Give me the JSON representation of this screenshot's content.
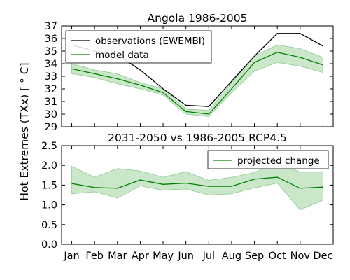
{
  "ylabel": "Hot Extremes (TXx) [$^\\circ C$]",
  "ylabel_display": "Hot Extremes (TXx) [ ° C]",
  "chart_data": [
    {
      "type": "line",
      "title": "Angola  1986-2005",
      "ylim": [
        29,
        37
      ],
      "yticks": [
        29,
        30,
        31,
        32,
        33,
        34,
        35,
        36,
        37
      ],
      "legend_position": "top-left",
      "categories": [
        "Jan",
        "Feb",
        "Mar",
        "Apr",
        "May",
        "Jun",
        "Jul",
        "Aug",
        "Sep",
        "Oct",
        "Nov",
        "Dec"
      ],
      "series": [
        {
          "name": "observations (EWEMBI)",
          "color": "#000000",
          "values": [
            35.5,
            35.0,
            34.7,
            33.5,
            32.0,
            30.7,
            30.6,
            32.6,
            34.6,
            36.4,
            36.4,
            35.4
          ]
        },
        {
          "name": "model data",
          "color": "#008000",
          "band_color": "#9fd39f",
          "values": [
            33.6,
            33.2,
            32.8,
            32.3,
            31.7,
            30.2,
            30.0,
            32.0,
            34.1,
            34.9,
            34.5,
            33.9
          ],
          "band_low": [
            33.2,
            32.9,
            32.4,
            32.0,
            31.5,
            30.0,
            29.8,
            31.7,
            33.4,
            34.1,
            33.8,
            33.3
          ],
          "band_high": [
            34.0,
            33.5,
            33.2,
            32.5,
            32.0,
            30.4,
            30.3,
            32.5,
            34.6,
            35.5,
            35.2,
            34.5
          ]
        }
      ]
    },
    {
      "type": "line",
      "title": "2031-2050 vs 1986-2005 RCP4.5",
      "ylim": [
        0.0,
        2.5
      ],
      "yticks": [
        "0.0",
        "0.5",
        "1.0",
        "1.5",
        "2.0",
        "2.5"
      ],
      "legend_position": "top-right",
      "categories": [
        "Jan",
        "Feb",
        "Mar",
        "Apr",
        "May",
        "Jun",
        "Jul",
        "Aug",
        "Sep",
        "Oct",
        "Nov",
        "Dec"
      ],
      "series": [
        {
          "name": "projected change",
          "color": "#008000",
          "band_color": "#9fd39f",
          "values": [
            1.54,
            1.44,
            1.42,
            1.63,
            1.52,
            1.55,
            1.47,
            1.47,
            1.65,
            1.7,
            1.42,
            1.45
          ],
          "band_low": [
            1.28,
            1.33,
            1.17,
            1.48,
            1.37,
            1.4,
            1.25,
            1.28,
            1.43,
            1.55,
            0.87,
            1.12
          ],
          "band_high": [
            1.98,
            1.7,
            1.92,
            1.86,
            1.7,
            1.84,
            1.62,
            1.7,
            1.82,
            2.07,
            1.83,
            1.84
          ]
        }
      ]
    }
  ]
}
